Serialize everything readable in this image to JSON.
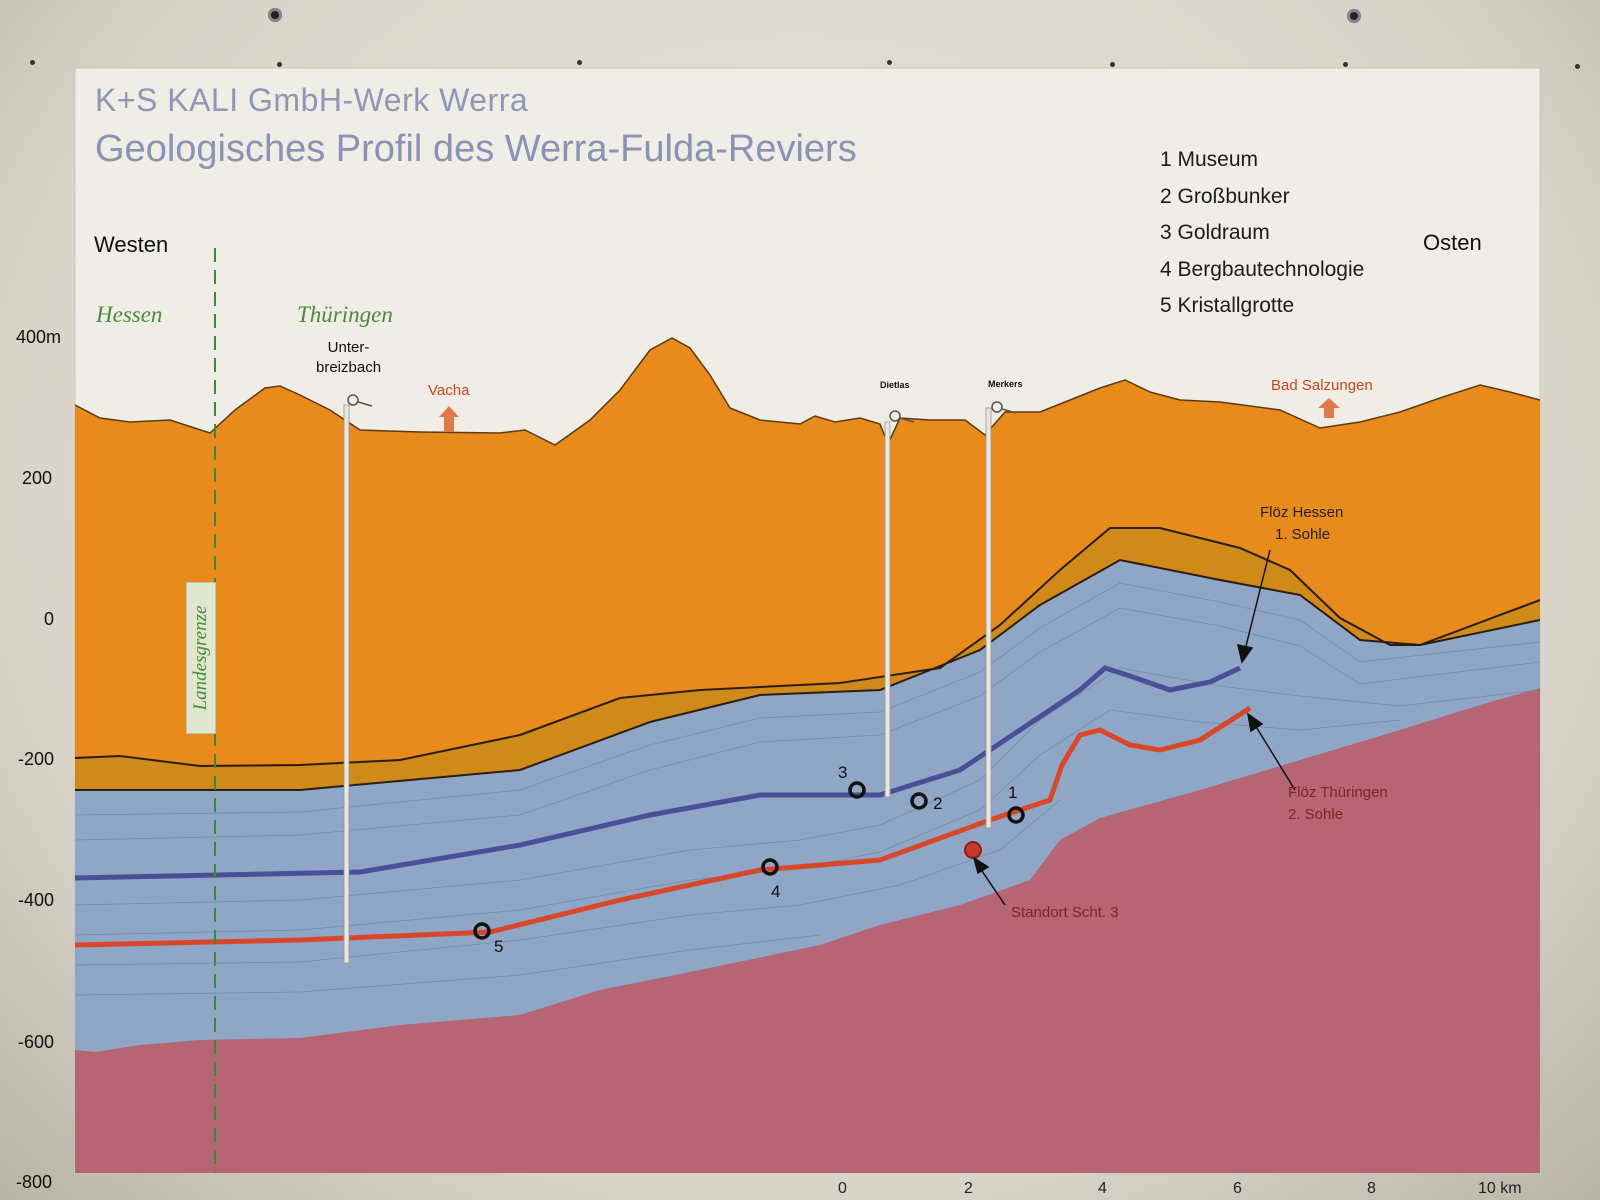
{
  "header": {
    "company": "K+S KALI GmbH-Werk Werra",
    "title": "Geologisches Profil des Werra-Fulda-Reviers"
  },
  "legend": [
    "1 Museum",
    "2 Großbunker",
    "3 Goldraum",
    "4 Bergbautechnologie",
    "5 Kristallgrotte"
  ],
  "directions": {
    "west": "Westen",
    "east": "Osten"
  },
  "states": {
    "left": "Hessen",
    "right": "Thüringen",
    "border": "Landesgrenze"
  },
  "y_axis": [
    "400m",
    "200",
    "0",
    "-200",
    "-400",
    "-600",
    "-800"
  ],
  "x_axis": [
    "0",
    "2",
    "4",
    "6",
    "8",
    "10 km"
  ],
  "places": {
    "unterbreizbach_1": "Unter-",
    "unterbreizbach_2": "breizbach",
    "dietlas": "Dietlas",
    "merkers": "Merkers",
    "vacha": "Vacha",
    "bad_salzungen": "Bad Salzungen"
  },
  "seams": {
    "hessen_1": "Flöz Hessen",
    "hessen_2": "1. Sohle",
    "thueringen_1": "Flöz Thüringen",
    "thueringen_2": "2. Sohle"
  },
  "standort": "Standort Scht. 3",
  "markers": [
    "1",
    "2",
    "3",
    "4",
    "5"
  ],
  "colors": {
    "overburden": "#e88a1c",
    "mid_layer": "#cf8a1a",
    "salt": "#8fa6c6",
    "basement": "#b56573",
    "seam_hessen": "#4c4f97",
    "seam_thueringen": "#d9472a",
    "border_line": "#3b8a3b"
  }
}
